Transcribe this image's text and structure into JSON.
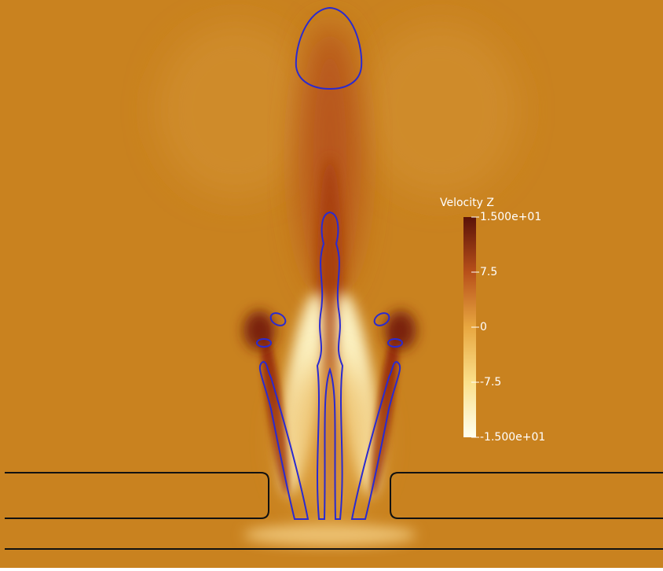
{
  "colorbar": {
    "title": "Velocity Z",
    "range": [
      -15,
      15
    ],
    "ticks": [
      {
        "value": 15,
        "label": "1.500e+01"
      },
      7.5,
      0,
      -7.5,
      {
        "value": -15,
        "label": "-1.500e+01"
      }
    ]
  }
}
